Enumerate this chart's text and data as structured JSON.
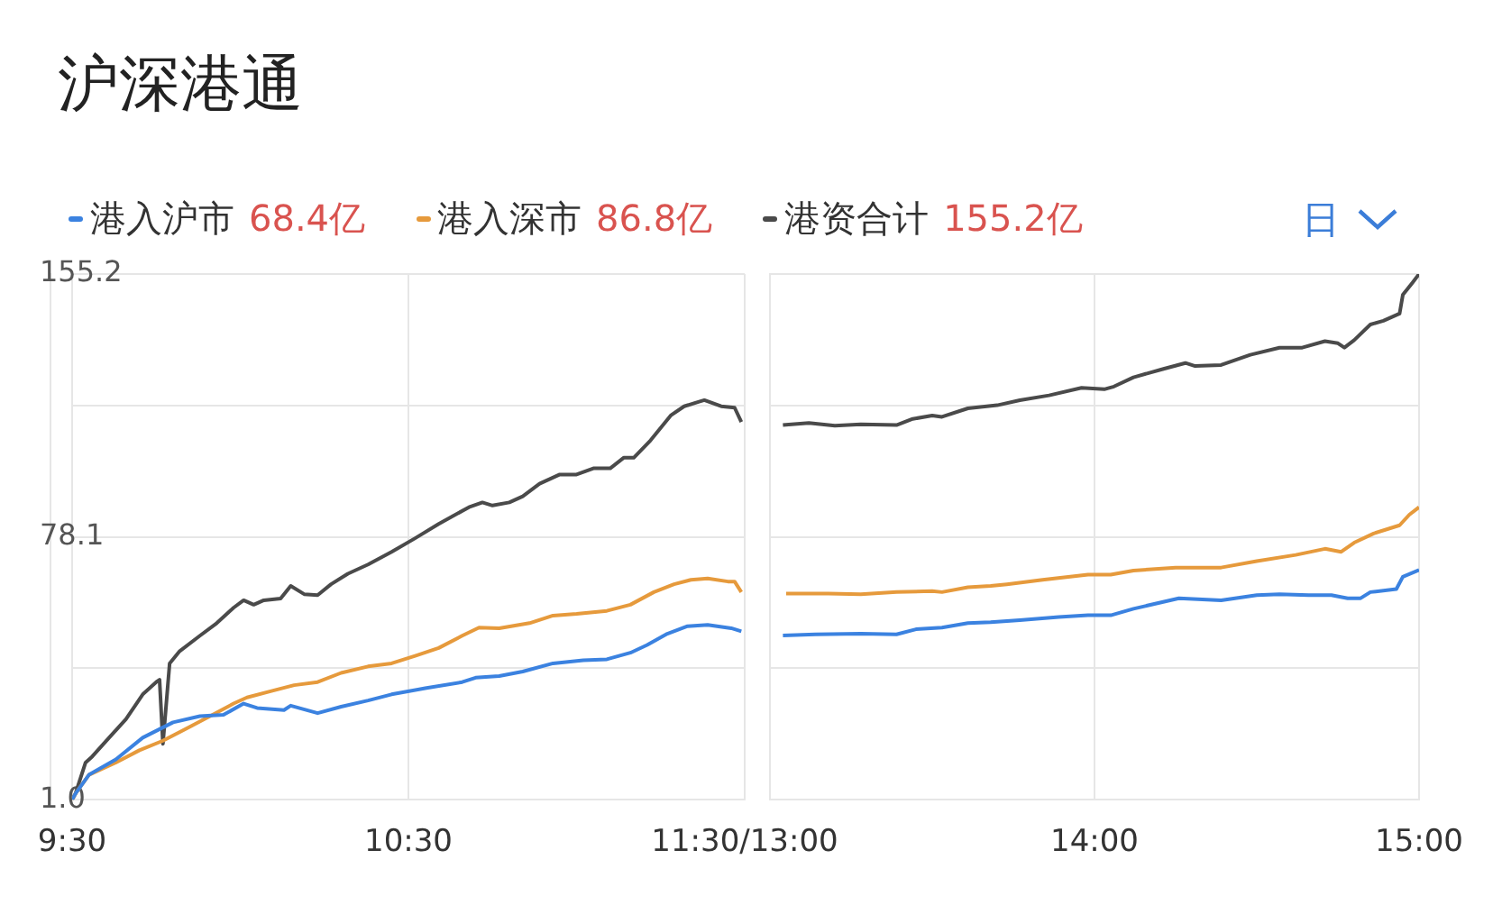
{
  "chart_data": [
    {
      "type": "line",
      "title": "沪深港通",
      "legend": "top",
      "grid": true,
      "line_style": "solid",
      "marker": "none",
      "annotations": [
        "68.4亿",
        "86.8亿",
        "155.2亿",
        "日"
      ],
      "xlim": [
        9.5,
        11.5
      ],
      "xticks": [
        {
          "value": 9.5,
          "label": "9:30"
        },
        {
          "value": 10.5,
          "label": "10:30"
        },
        {
          "value": 11.5,
          "label": "11:30/13:00"
        }
      ],
      "ylim": [
        1,
        155.2
      ],
      "yticks": [
        {
          "value": 1,
          "label": "1.0"
        },
        {
          "value": 39.55,
          "label": null
        },
        78.1,
        {
          "value": 116.65,
          "label": null
        },
        155.2
      ],
      "series": [
        {
          "name": "港入沪市",
          "color": "#3b82e0",
          "x": [
            9.5,
            9.51,
            9.55,
            9.63,
            9.71,
            9.8,
            9.88,
            9.95,
            10.01,
            10.05,
            10.13,
            10.15,
            10.23,
            10.3,
            10.38,
            10.45,
            10.55,
            10.66,
            10.7,
            10.77,
            10.84,
            10.93,
            11.02,
            11.09,
            11.16,
            11.21,
            11.27,
            11.33,
            11.39,
            11.46,
            11.49
          ],
          "values": [
            1,
            2.8,
            8.3,
            12.8,
            19.2,
            23.7,
            25.5,
            25.9,
            29.2,
            27.9,
            27.3,
            28.6,
            26.4,
            28.3,
            30.1,
            31.9,
            33.7,
            35.5,
            36.8,
            37.3,
            38.6,
            41,
            41.9,
            42.2,
            44.1,
            46.4,
            49.7,
            51.9,
            52.3,
            51.3,
            50.4
          ]
        },
        {
          "name": "港入深市",
          "color": "#e69a3c",
          "x": [
            9.5,
            9.51,
            9.55,
            9.63,
            9.7,
            9.77,
            9.84,
            9.91,
            9.98,
            10.02,
            10.09,
            10.16,
            10.23,
            10.3,
            10.38,
            10.45,
            10.52,
            10.59,
            10.66,
            10.71,
            10.77,
            10.86,
            10.93,
            11,
            11.09,
            11.16,
            11.23,
            11.29,
            11.34,
            11.39,
            11.45,
            11.47,
            11.49
          ],
          "values": [
            1,
            2.8,
            8.3,
            11.9,
            15.5,
            18.3,
            21.9,
            25.5,
            29.2,
            31,
            32.8,
            34.6,
            35.5,
            38.2,
            40.1,
            41,
            43.2,
            45.5,
            49.1,
            51.5,
            51.3,
            52.8,
            55,
            55.5,
            56.4,
            58.2,
            61.9,
            64.2,
            65.5,
            65.9,
            65,
            65,
            61.9
          ]
        },
        {
          "name": "港资合计",
          "color": "#4a4a4a",
          "x": [
            9.5,
            9.51,
            9.54,
            9.56,
            9.61,
            9.66,
            9.71,
            9.75,
            9.76,
            9.77,
            9.79,
            9.82,
            9.88,
            9.93,
            9.98,
            10.01,
            10.04,
            10.07,
            10.12,
            10.15,
            10.19,
            10.23,
            10.27,
            10.32,
            10.38,
            10.45,
            10.52,
            10.59,
            10.68,
            10.72,
            10.75,
            10.8,
            10.84,
            10.89,
            10.95,
            11,
            11.05,
            11.1,
            11.14,
            11.17,
            11.22,
            11.28,
            11.32,
            11.36,
            11.38,
            11.43,
            11.47,
            11.49
          ],
          "values": [
            1,
            2.8,
            11.9,
            13.7,
            19.2,
            24.6,
            31.9,
            35.5,
            36.2,
            17.4,
            41,
            44.6,
            49.1,
            52.8,
            57.3,
            59.5,
            58.2,
            59.5,
            60,
            63.7,
            61.3,
            61,
            64.2,
            67.3,
            70,
            73.7,
            77.7,
            81.9,
            86.8,
            88.2,
            87.3,
            88.2,
            90,
            93.7,
            96.4,
            96.4,
            98.2,
            98.2,
            101.3,
            101.3,
            106.4,
            113.7,
            116.4,
            117.6,
            118.2,
            116.4,
            116,
            111.8
          ]
        }
      ]
    },
    {
      "type": "line",
      "grid": true,
      "line_style": "solid",
      "marker": "none",
      "tick_labels": "x",
      "xlim": [
        13,
        15
      ],
      "xticks": [
        {
          "value": 13,
          "label": null
        },
        {
          "value": 14,
          "label": "14:00"
        },
        {
          "value": 15,
          "label": "15:00"
        }
      ],
      "ylim": [
        1,
        155.2
      ],
      "yticks": [
        1,
        39.55,
        78.1,
        116.65,
        155.2
      ],
      "series": [
        {
          "color": "#3b82e0",
          "x": [
            13.04,
            13.14,
            13.28,
            13.39,
            13.45,
            13.53,
            13.61,
            13.68,
            13.77,
            13.89,
            13.98,
            14.05,
            14.12,
            14.26,
            14.39,
            14.5,
            14.57,
            14.66,
            14.73,
            14.78,
            14.82,
            14.85,
            14.93,
            14.95,
            15
          ],
          "values": [
            49.2,
            49.5,
            49.7,
            49.5,
            51,
            51.5,
            52.8,
            53.1,
            53.7,
            54.6,
            55.1,
            55.1,
            57,
            60.1,
            59.5,
            61,
            61.3,
            61,
            61,
            60.1,
            60.1,
            61.9,
            62.8,
            66.4,
            68.4
          ]
        },
        {
          "color": "#e69a3c",
          "x": [
            13.05,
            13.18,
            13.28,
            13.39,
            13.5,
            13.53,
            13.61,
            13.68,
            13.73,
            13.84,
            13.98,
            14.05,
            14.12,
            14.25,
            14.39,
            14.5,
            14.62,
            14.71,
            14.76,
            14.8,
            14.86,
            14.94,
            14.97,
            15
          ],
          "values": [
            61.5,
            61.5,
            61.3,
            61.9,
            62.2,
            61.9,
            63.3,
            63.7,
            64.2,
            65.5,
            67,
            67,
            68.2,
            69.1,
            69.1,
            71,
            72.8,
            74.6,
            73.7,
            76.4,
            79.1,
            81.5,
            84.6,
            86.8
          ]
        },
        {
          "color": "#4a4a4a",
          "x": [
            13.04,
            13.12,
            13.2,
            13.28,
            13.39,
            13.44,
            13.5,
            13.53,
            13.61,
            13.7,
            13.77,
            13.86,
            13.96,
            14.03,
            14.06,
            14.12,
            14.21,
            14.28,
            14.31,
            14.39,
            14.48,
            14.57,
            14.64,
            14.71,
            14.75,
            14.77,
            14.8,
            14.85,
            14.89,
            14.94,
            14.95,
            14.98,
            15
          ],
          "values": [
            110.9,
            111.5,
            110.7,
            111.1,
            110.9,
            112.7,
            113.7,
            113.3,
            115.8,
            116.7,
            118.2,
            119.6,
            121.8,
            121.4,
            122.2,
            124.9,
            127.3,
            129.1,
            128.2,
            128.5,
            131.5,
            133.6,
            133.6,
            135.5,
            134.9,
            133.6,
            135.8,
            140.4,
            141.5,
            143.6,
            149.1,
            152.7,
            155.2
          ]
        }
      ]
    }
  ]
}
